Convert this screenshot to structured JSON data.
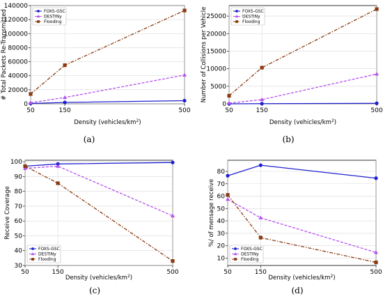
{
  "chart_data": [
    {
      "panel": "a",
      "type": "line",
      "caption": "(a)",
      "xlabel": "Density (vehicles/km²)",
      "xlabel_parts": [
        "Density (vehicles/km",
        "2",
        ")"
      ],
      "ylabel": "# Total Packets Re-Transmitted",
      "x": [
        50,
        150,
        500
      ],
      "xticks": [
        "50",
        "150",
        "500"
      ],
      "xlim": [
        50,
        500
      ],
      "ylim": [
        0,
        140000
      ],
      "yticks": [
        0,
        20000,
        40000,
        60000,
        80000,
        100000,
        120000,
        140000
      ],
      "ytick_labels": [
        "0",
        "20000",
        "40000",
        "60000",
        "80000",
        "100000",
        "120000",
        "140000"
      ],
      "legend_position": "top-left",
      "series": [
        {
          "name": "FOXS-GSC",
          "color": "#1f1fd0",
          "marker": "circle",
          "dash": "solid",
          "values": [
            500,
            2000,
            4500
          ]
        },
        {
          "name": "DESTINy",
          "color": "#b450ee",
          "marker": "triangle",
          "dash": "dash",
          "values": [
            1500,
            9000,
            41000
          ]
        },
        {
          "name": "Flooding",
          "color": "#8b3a0f",
          "marker": "square",
          "dash": "dashdot",
          "values": [
            14000,
            55000,
            133000
          ]
        }
      ]
    },
    {
      "panel": "b",
      "type": "line",
      "caption": "(b)",
      "xlabel": "Density (vehicles/km²)",
      "xlabel_parts": [
        "Density (vehicles/km",
        "2",
        ")"
      ],
      "ylabel": "Number of Collisions per Vehicle",
      "x": [
        50,
        150,
        500
      ],
      "xticks": [
        "50",
        "150",
        "500"
      ],
      "xlim": [
        50,
        500
      ],
      "ylim": [
        0,
        28000
      ],
      "yticks": [
        0,
        5000,
        10000,
        15000,
        20000,
        25000
      ],
      "ytick_labels": [
        "0",
        "5000",
        "10000",
        "15000",
        "20000",
        "25000"
      ],
      "legend_position": "top-left",
      "series": [
        {
          "name": "FOXS-GSC",
          "color": "#1f1fd0",
          "marker": "circle",
          "dash": "solid",
          "values": [
            0,
            50,
            150
          ]
        },
        {
          "name": "DESTINy",
          "color": "#b450ee",
          "marker": "triangle",
          "dash": "dash",
          "values": [
            200,
            1200,
            8500
          ]
        },
        {
          "name": "Flooding",
          "color": "#8b3a0f",
          "marker": "square",
          "dash": "dashdot",
          "values": [
            2300,
            10300,
            27000
          ]
        }
      ]
    },
    {
      "panel": "c",
      "type": "line",
      "caption": "(c)",
      "xlabel": "Density (vehicles/km²)",
      "xlabel_parts": [
        "Density (vehicles/km",
        "2",
        ")"
      ],
      "ylabel": "Receive Coverage",
      "x": [
        50,
        150,
        500
      ],
      "xticks": [
        "50",
        "150",
        "500"
      ],
      "xlim": [
        50,
        500
      ],
      "ylim": [
        30,
        101
      ],
      "yticks": [
        30,
        40,
        50,
        60,
        70,
        80,
        90,
        100
      ],
      "ytick_labels": [
        "30",
        "40",
        "50",
        "60",
        "70",
        "80",
        "90",
        "100"
      ],
      "legend_position": "bottom-left",
      "series": [
        {
          "name": "FOXS-GSC",
          "color": "#1f1fd0",
          "marker": "circle",
          "dash": "solid",
          "values": [
            97,
            98.5,
            99.5
          ]
        },
        {
          "name": "DESTINy",
          "color": "#b450ee",
          "marker": "triangle",
          "dash": "dash",
          "values": [
            95.5,
            97,
            63.5
          ]
        },
        {
          "name": "Flooding",
          "color": "#8b3a0f",
          "marker": "square",
          "dash": "dashdot",
          "values": [
            97,
            85.5,
            33
          ]
        }
      ]
    },
    {
      "panel": "d",
      "type": "line",
      "caption": "(d)",
      "xlabel": "Density (vehicles/km²)",
      "xlabel_parts": [
        "Density (vehicles/km",
        "2",
        ")"
      ],
      "ylabel": "%/ of mensage receive",
      "x": [
        50,
        150,
        500
      ],
      "xticks": [
        "50",
        "150",
        "500"
      ],
      "xlim": [
        50,
        500
      ],
      "ylim": [
        4,
        89
      ],
      "yticks": [
        10,
        20,
        30,
        40,
        50,
        60,
        70,
        80
      ],
      "ytick_labels": [
        "10",
        "20",
        "30",
        "40",
        "50",
        "60",
        "70",
        "80"
      ],
      "legend_position": "bottom-left",
      "series": [
        {
          "name": "FOXS-GSC",
          "color": "#1f1fd0",
          "marker": "circle",
          "dash": "solid",
          "values": [
            76.5,
            85,
            74.5
          ]
        },
        {
          "name": "DESTINy",
          "color": "#b450ee",
          "marker": "triangle",
          "dash": "dash",
          "values": [
            57.5,
            42.5,
            14.5
          ]
        },
        {
          "name": "Flooding",
          "color": "#8b3a0f",
          "marker": "square",
          "dash": "dashdot",
          "values": [
            61,
            26.5,
            6.5
          ]
        }
      ]
    }
  ]
}
